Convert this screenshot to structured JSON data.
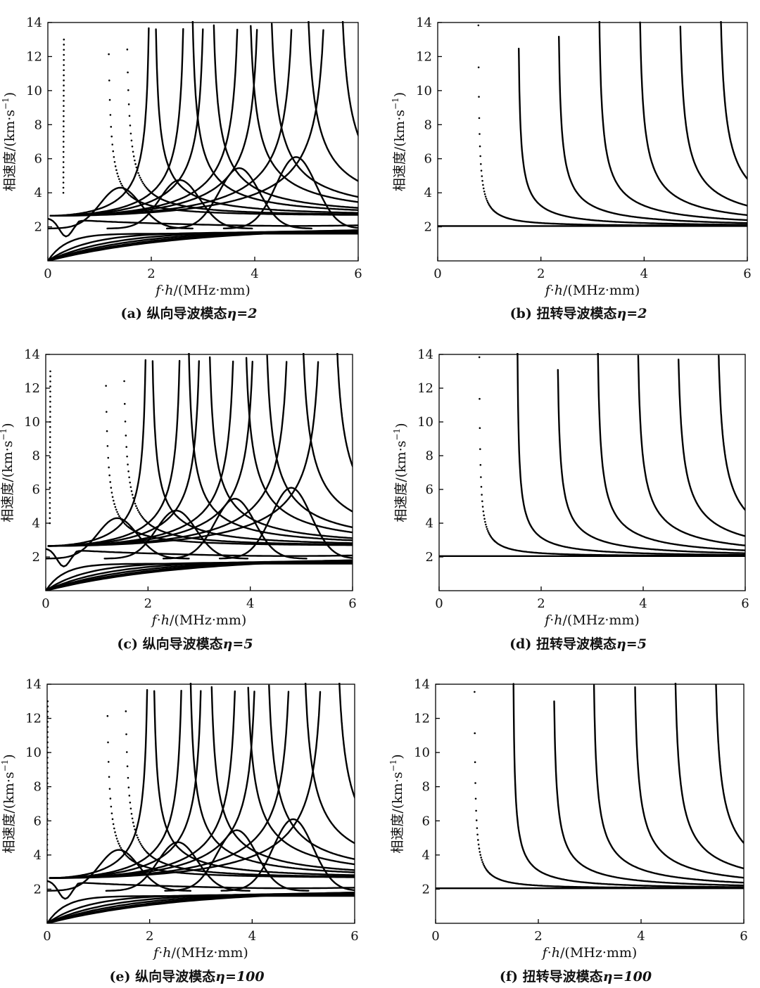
{
  "figure": {
    "background": "#ffffff",
    "ink": "#000000"
  },
  "chart_data": [
    {
      "id": "a",
      "type": "line",
      "caption_prefix": "(a)",
      "caption_text": "纵向导波模态",
      "caption_eta": "η=2",
      "xlabel_f": "f",
      "xlabel_h": "h",
      "xlabel_rest": "/(MHz·mm)",
      "ylabel_main": "相速度/(km·s",
      "ylabel_sup": "−1",
      "ylabel_close": ")",
      "xlim": [
        0,
        6
      ],
      "ylim": [
        0,
        14
      ],
      "xticks": [
        "0",
        "2",
        "4",
        "6"
      ],
      "yticks": [
        "2",
        "4",
        "6",
        "8",
        "10",
        "12",
        "14"
      ],
      "mode": "longitudinal",
      "eta": 2,
      "early_dot_x": 0.3
    },
    {
      "id": "b",
      "type": "line",
      "caption_prefix": "(b)",
      "caption_text": "扭转导波模态",
      "caption_eta": "η=2",
      "xlabel_f": "f",
      "xlabel_h": "h",
      "xlabel_rest": "/(MHz·mm)",
      "ylabel_main": "相速度/(km·s",
      "ylabel_sup": "−1",
      "ylabel_close": ")",
      "xlim": [
        0,
        6
      ],
      "ylim": [
        0,
        14
      ],
      "xticks": [
        "0",
        "2",
        "4",
        "6"
      ],
      "yticks": [
        "2",
        "4",
        "6",
        "8",
        "10",
        "12",
        "14"
      ],
      "mode": "torsional",
      "eta": 2,
      "c_shear": 2.05,
      "cutoffs": [
        0.78,
        1.55,
        2.32,
        3.1,
        3.88,
        4.65,
        5.43
      ]
    },
    {
      "id": "c",
      "type": "line",
      "caption_prefix": "(c)",
      "caption_text": "纵向导波模态",
      "caption_eta": "η=5",
      "xlabel_f": "f",
      "xlabel_h": "h",
      "xlabel_rest": "/(MHz·mm)",
      "ylabel_main": "相速度/(km·s",
      "ylabel_sup": "−1",
      "ylabel_close": ")",
      "xlim": [
        0,
        6
      ],
      "ylim": [
        0,
        14
      ],
      "xticks": [
        "0",
        "2",
        "4",
        "6"
      ],
      "yticks": [
        "2",
        "4",
        "6",
        "8",
        "10",
        "12",
        "14"
      ],
      "mode": "longitudinal",
      "eta": 5,
      "early_dot_x": 0.08
    },
    {
      "id": "d",
      "type": "line",
      "caption_prefix": "(d)",
      "caption_text": "扭转导波模态",
      "caption_eta": "η=5",
      "xlabel_f": "f",
      "xlabel_h": "h",
      "xlabel_rest": "/(MHz·mm)",
      "ylabel_main": "相速度/(km·s",
      "ylabel_sup": "−1",
      "ylabel_close": ")",
      "xlim": [
        0,
        6
      ],
      "ylim": [
        0,
        14
      ],
      "xticks": [
        "0",
        "2",
        "4",
        "6"
      ],
      "yticks": [
        "2",
        "4",
        "6",
        "8",
        "10",
        "12",
        "14"
      ],
      "mode": "torsional",
      "eta": 5,
      "c_shear": 2.05,
      "cutoffs": [
        0.78,
        1.52,
        2.3,
        3.08,
        3.86,
        4.64,
        5.42
      ]
    },
    {
      "id": "e",
      "type": "line",
      "caption_prefix": "(e)",
      "caption_text": "纵向导波模态",
      "caption_eta": "η=100",
      "xlabel_f": "f",
      "xlabel_h": "h",
      "xlabel_rest": "/(MHz·mm)",
      "ylabel_main": "相速度/(km·s",
      "ylabel_sup": "−1",
      "ylabel_close": ")",
      "xlim": [
        0,
        6
      ],
      "ylim": [
        0,
        14
      ],
      "xticks": [
        "0",
        "2",
        "4",
        "6"
      ],
      "yticks": [
        "2",
        "4",
        "6",
        "8",
        "10",
        "12",
        "14"
      ],
      "mode": "longitudinal",
      "eta": 100,
      "early_dot_x": 0.0
    },
    {
      "id": "f",
      "type": "line",
      "caption_prefix": "(f)",
      "caption_text": "扭转导波模态",
      "caption_eta": "η=100",
      "xlabel_f": "f",
      "xlabel_h": "h",
      "xlabel_rest": "/(MHz·mm)",
      "ylabel_main": "相速度/(km·s",
      "ylabel_sup": "−1",
      "ylabel_close": ")",
      "xlim": [
        0,
        6
      ],
      "ylim": [
        0,
        14
      ],
      "xticks": [
        "0",
        "2",
        "4",
        "6"
      ],
      "yticks": [
        "2",
        "4",
        "6",
        "8",
        "10",
        "12",
        "14"
      ],
      "mode": "torsional",
      "eta": 100,
      "c_shear": 2.05,
      "cutoffs": [
        0.75,
        1.5,
        2.28,
        3.05,
        3.84,
        4.62,
        5.4
      ]
    }
  ]
}
